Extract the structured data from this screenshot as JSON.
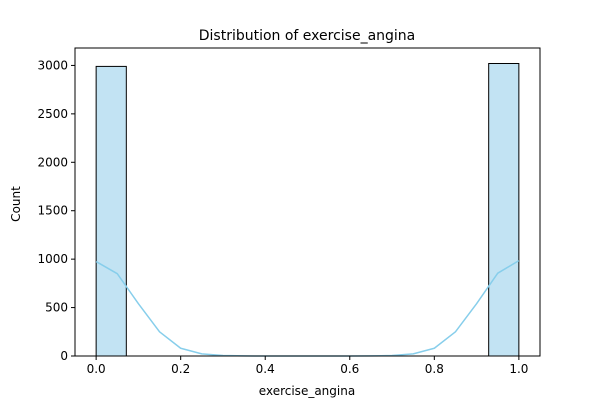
{
  "chart_data": {
    "type": "bar",
    "title": "Distribution of exercise_angina",
    "xlabel": "exercise_angina",
    "ylabel": "Count",
    "xlim": [
      -0.05,
      1.05
    ],
    "ylim": [
      0,
      3180
    ],
    "bins": [
      {
        "x0": 0.0,
        "x1": 0.0714,
        "count": 2990
      },
      {
        "x0": 0.9286,
        "x1": 1.0,
        "count": 3020
      }
    ],
    "x_ticks": [
      0.0,
      0.2,
      0.4,
      0.6,
      0.8,
      1.0
    ],
    "x_tick_labels": [
      "0.0",
      "0.2",
      "0.4",
      "0.6",
      "0.8",
      "1.0"
    ],
    "y_ticks": [
      0,
      500,
      1000,
      1500,
      2000,
      2500,
      3000
    ],
    "y_tick_labels": [
      "0",
      "500",
      "1000",
      "1500",
      "2000",
      "2500",
      "3000"
    ],
    "kde": {
      "x": [
        0.0,
        0.05,
        0.1,
        0.15,
        0.2,
        0.25,
        0.3,
        0.35,
        0.4,
        0.45,
        0.5,
        0.55,
        0.6,
        0.65,
        0.7,
        0.75,
        0.8,
        0.85,
        0.9,
        0.95,
        1.0
      ],
      "y": [
        975,
        850,
        540,
        250,
        80,
        22,
        5,
        1,
        0,
        0,
        0,
        0,
        0,
        1,
        5,
        22,
        80,
        250,
        540,
        855,
        985
      ]
    },
    "grid": false,
    "colors": {
      "bar_fill": "#c2e3f3",
      "bar_edge": "#000000",
      "kde_line": "#87ceeb"
    }
  }
}
